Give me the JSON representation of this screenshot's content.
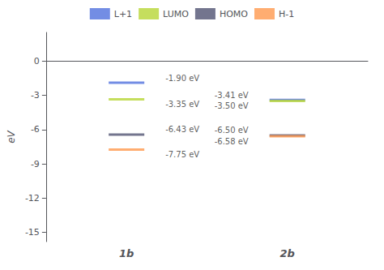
{
  "chart_data": {
    "type": "scatter",
    "ylabel": "eV",
    "categories": [
      "1b",
      "2b"
    ],
    "series": [
      {
        "name": "L+1",
        "values": [
          -1.9,
          -3.41
        ],
        "value_labels": [
          "-1.90 eV",
          "-3.41 eV"
        ]
      },
      {
        "name": "LUMO",
        "values": [
          -3.35,
          -3.5
        ],
        "value_labels": [
          "-3.35 eV",
          "-3.50 eV"
        ]
      },
      {
        "name": "HOMO",
        "values": [
          -6.43,
          -6.5
        ],
        "value_labels": [
          "-6.43 eV",
          "-6.50 eV"
        ]
      },
      {
        "name": "H-1",
        "values": [
          -7.75,
          -6.58
        ],
        "value_labels": [
          "-7.75 eV",
          "-6.58 eV"
        ]
      }
    ],
    "ylim": [
      -15.8,
      2.5
    ],
    "yticks": [
      0,
      -3,
      -6,
      -9,
      -12,
      -15
    ],
    "grid": false,
    "legend": "top",
    "marker": "line",
    "data_labels": true
  }
}
